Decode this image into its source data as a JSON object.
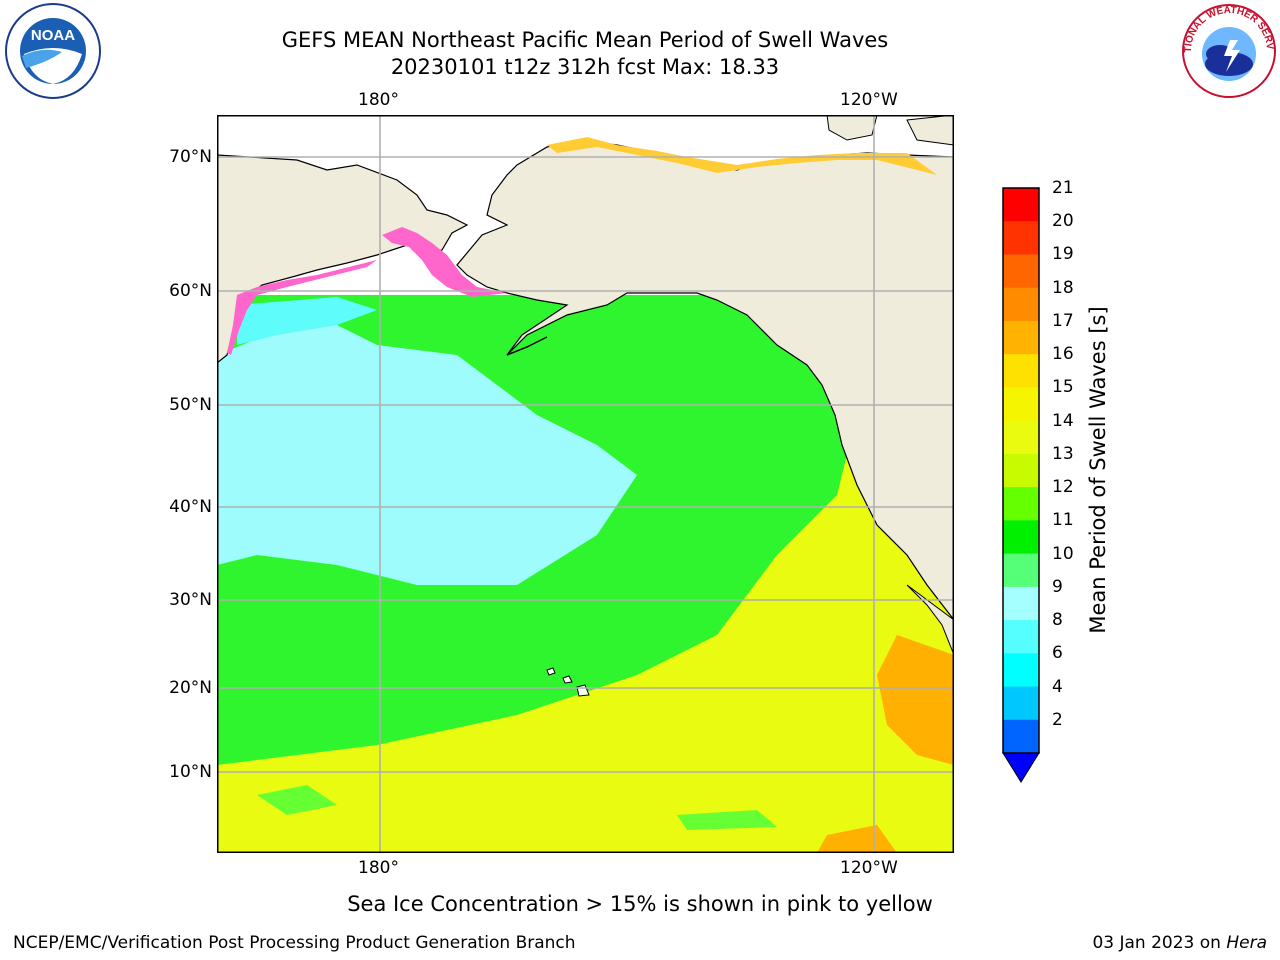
{
  "header": {
    "title_line1": "GEFS MEAN Northeast Pacific Mean Period of Swell Waves",
    "title_line2": "20230101 t12z 312h fcst   Max: 18.33"
  },
  "logos": {
    "left": {
      "icon": "noaa-logo",
      "text": "NOAA"
    },
    "right": {
      "icon": "national-weather-service-logo",
      "text": "NATIONAL WEATHER SERVICE"
    }
  },
  "map": {
    "top_lon_labels": [
      "180°",
      "120°W"
    ],
    "bottom_lon_labels": [
      "180°",
      "120°W"
    ],
    "lat_labels": [
      "70°N",
      "60°N",
      "50°N",
      "40°N",
      "30°N",
      "20°N",
      "10°N"
    ],
    "colors": {
      "land": "#efecdc",
      "ocean_cyan": "#9ffcfc",
      "ocean_green": "#2ff52f",
      "ocean_yellow": "#e8fb10",
      "ocean_orange": "#ffb000",
      "sea_ice": "#ff66cc",
      "grid": "#b0b0b0"
    }
  },
  "colorbar": {
    "label": "Mean Period of Swell Waves [s]",
    "ticks": [
      "21",
      "20",
      "19",
      "18",
      "17",
      "16",
      "15",
      "14",
      "13",
      "12",
      "11",
      "10",
      "9",
      "8",
      "6",
      "4",
      "2"
    ],
    "colors_top_to_bottom": [
      "#ff0000",
      "#ff3300",
      "#ff6600",
      "#ff8c00",
      "#ffb300",
      "#ffe100",
      "#f5f500",
      "#ebfb10",
      "#c8fa00",
      "#66ff00",
      "#00f000",
      "#55ff77",
      "#a6ffff",
      "#55ffff",
      "#00ffff",
      "#00c8ff",
      "#0064ff"
    ],
    "extend_color": "#0000ff"
  },
  "ice_note": "Sea Ice Concentration > 15% is shown in pink to yellow",
  "footer": {
    "left": "NCEP/EMC/Verification Post Processing Product Generation Branch",
    "date": "03 Jan 2023 on ",
    "machine": "Hera"
  }
}
